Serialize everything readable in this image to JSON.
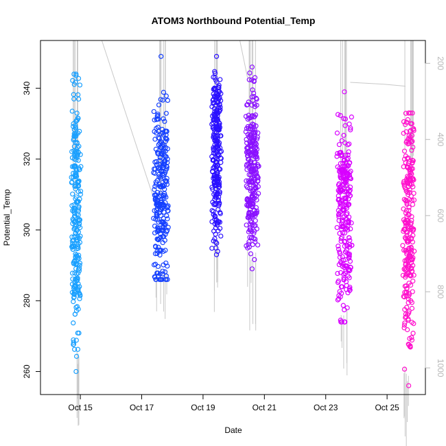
{
  "chart_data": {
    "type": "scatter",
    "title": "ATOM3 Northbound Potential_Temp",
    "xlabel": "Date",
    "ylabel": "Potential_Temp",
    "x_ticks": [
      "Oct 15",
      "Oct 17",
      "Oct 19",
      "Oct 21",
      "Oct 23",
      "Oct 25"
    ],
    "x_tick_values": [
      15,
      17,
      19,
      21,
      23,
      25
    ],
    "xlim": [
      13.7,
      26.25
    ],
    "ylim": [
      253.5,
      353.5
    ],
    "y_ticks": [
      260,
      280,
      300,
      320,
      340
    ],
    "right_axis": {
      "ticks": [
        200,
        400,
        600,
        800,
        1000
      ],
      "ylim": [
        1070,
        140
      ],
      "color": "#b8b8b8"
    },
    "grid": false,
    "series": [
      {
        "day": 14.85,
        "start_pt": 305,
        "color": "#1aa0ff",
        "segments": [
          [
            14.74,
            14.98,
            260,
            344
          ]
        ]
      },
      {
        "day": 17.55,
        "start_pt": 310,
        "color": "#1540ff",
        "segments": [
          [
            17.42,
            17.84,
            286,
            349
          ]
        ]
      },
      {
        "day": 19.45,
        "start_pt": 320,
        "color": "#2a10ff",
        "segments": [
          [
            19.32,
            19.56,
            293,
            349
          ]
        ]
      },
      {
        "day": 20.6,
        "start_pt": 318,
        "color": "#8a10ff",
        "segments": [
          [
            20.42,
            20.78,
            289,
            346
          ]
        ]
      },
      {
        "day": 23.6,
        "start_pt": 305,
        "color": "#d800ff",
        "segments": [
          [
            23.4,
            23.82,
            274,
            339
          ]
        ]
      },
      {
        "day": 25.7,
        "start_pt": 300,
        "color": "#ff10cc",
        "segments": [
          [
            25.55,
            25.86,
            256,
            333
          ]
        ]
      }
    ]
  }
}
